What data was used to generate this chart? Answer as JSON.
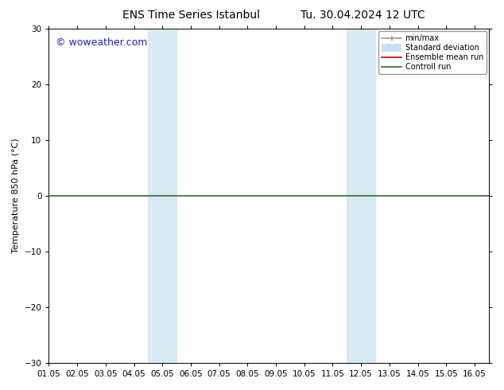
{
  "title_left": "ENS Time Series Istanbul",
  "title_right": "Tu. 30.04.2024 12 UTC",
  "ylabel": "Temperature 850 hPa (°C)",
  "ylim": [
    -30,
    30
  ],
  "yticks": [
    -30,
    -20,
    -10,
    0,
    10,
    20,
    30
  ],
  "xlim": [
    0.0,
    15.5
  ],
  "xtick_positions": [
    0,
    1,
    2,
    3,
    4,
    5,
    6,
    7,
    8,
    9,
    10,
    11,
    12,
    13,
    14,
    15
  ],
  "xtick_labels": [
    "01.05",
    "02.05",
    "03.05",
    "04.05",
    "05.05",
    "06.05",
    "07.05",
    "08.05",
    "09.05",
    "10.05",
    "11.05",
    "12.05",
    "13.05",
    "14.05",
    "15.05",
    "16.05"
  ],
  "shaded_bands": [
    {
      "xmin": 3.5,
      "xmax": 4.0,
      "color": "#daeaf5"
    },
    {
      "xmin": 4.0,
      "xmax": 4.5,
      "color": "#daeaf5"
    },
    {
      "xmin": 10.5,
      "xmax": 11.0,
      "color": "#daeaf5"
    },
    {
      "xmin": 11.0,
      "xmax": 11.5,
      "color": "#daeaf5"
    }
  ],
  "hline_y": 0,
  "hline_color": "#2d6a2d",
  "hline_lw": 1.2,
  "watermark_text": "© woweather.com",
  "watermark_color": "#2222bb",
  "watermark_fontsize": 9,
  "legend_items": [
    {
      "label": "min/max",
      "color": "#999999",
      "lw": 1.2,
      "style": "line_with_bars"
    },
    {
      "label": "Standard deviation",
      "color": "#c8dff0",
      "lw": 7,
      "style": "band"
    },
    {
      "label": "Ensemble mean run",
      "color": "#cc0000",
      "lw": 1.2,
      "style": "line"
    },
    {
      "label": "Controll run",
      "color": "#2d6a2d",
      "lw": 1.2,
      "style": "line"
    }
  ],
  "bg_color": "#ffffff",
  "plot_bg_color": "#ffffff",
  "title_fontsize": 10,
  "axis_label_fontsize": 8,
  "tick_fontsize": 7.5
}
